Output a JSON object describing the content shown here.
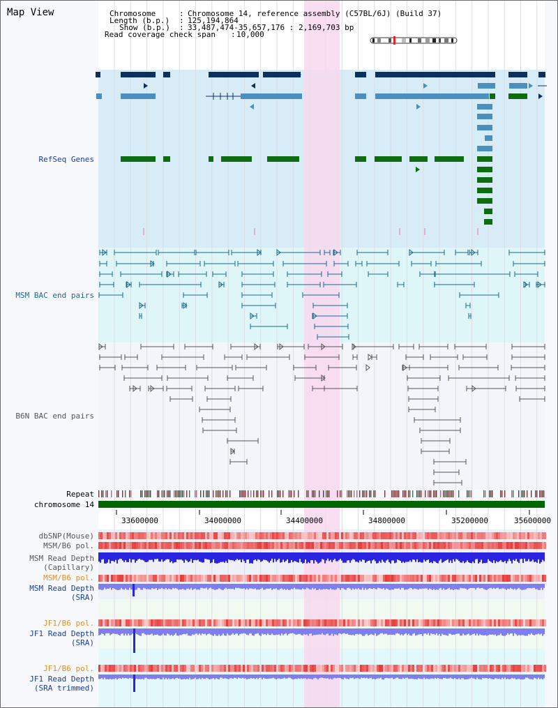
{
  "title": "Map View",
  "header": {
    "chromosome_key": "Chromosome",
    "chromosome_val": "Chromosome 14, reference assembly (C57BL/6J) (Build 37)",
    "length_key": "Length (b.p.)",
    "length_val": "125,194,864",
    "show_key": "Show (b.p.)",
    "show_val": "33,487,474-35,657,176 : 2,169,703 bp",
    "span_key": "Read coverage check span",
    "span_val": "10,000"
  },
  "tracks": {
    "refseq": "RefSeq Genes",
    "msm_bac": "MSM BAC end pairs",
    "b6n_bac": "B6N BAC end pairs",
    "repeat": "Repeat",
    "chromosome": "chromosome 14",
    "dbsnp": "dbSNP(Mouse)",
    "msm_b6_pol_1": "MSM/B6 pol.",
    "msm_depth_cap_1": "MSM Read Depth",
    "msm_depth_cap_2": "(Capillary)",
    "msm_b6_pol_2": "MSM/B6 pol.",
    "msm_depth_sra_1": "MSM Read Depth",
    "msm_depth_sra_2": "(SRA)",
    "jf1_b6_pol_1": "JF1/B6 pol.",
    "jf1_depth_sra_1": "JF1 Read Depth",
    "jf1_depth_sra_2": "(SRA)",
    "jf1_b6_pol_2": "JF1/B6 pol.",
    "jf1_depth_trim_1": "JF1 Read Depth",
    "jf1_depth_trim_2": "(SRA trimmed)"
  },
  "axis_ticks": [
    "33600000",
    "34000000",
    "34400000",
    "34800000",
    "35200000",
    "35600000"
  ],
  "colors": {
    "refseq_dark": "#0b2f5f",
    "refseq_mid": "#4a8fbd",
    "refseq_green": "#0d6b10",
    "highlight": "#f8d8ee",
    "refseq_bg": "#d7ecf7",
    "msm_bg": "#dff6f8",
    "msm_link": "#1a6a8a",
    "b6n_link": "#555555",
    "chrom_bar": "#006600",
    "label_blue": "#1a3d9c",
    "label_orange": "#e0902a",
    "label_gray": "#555555",
    "depth_blue": "#2a23e0",
    "depth_light": "#7e7ef0"
  }
}
